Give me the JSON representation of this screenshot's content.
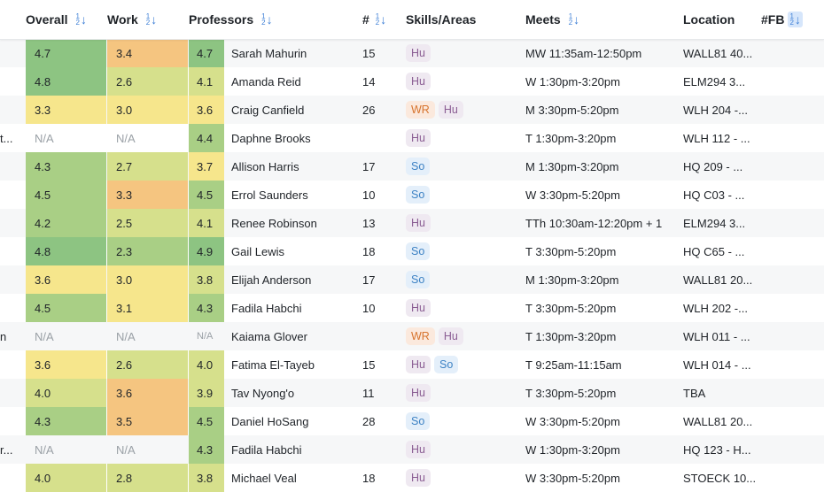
{
  "header": {
    "overall_label": "Overall",
    "work_label": "Work",
    "professors_label": "Professors",
    "num_label": "#",
    "skills_label": "Skills/Areas",
    "meets_label": "Meets",
    "location_label": "Location",
    "fb_label": "#FB",
    "sort_top": "1",
    "sort_bottom": "2",
    "sort_arrow": "↓"
  },
  "colors": {
    "rating_green_dark": "#8dc482",
    "rating_green": "#a9cf85",
    "rating_yellow_green": "#d6e08c",
    "rating_yellow": "#f6e68c",
    "rating_orange": "#f5c580"
  },
  "rows": [
    {
      "course": "",
      "overall": "4.7",
      "work": "3.4",
      "prof_rating": "4.7",
      "professor": "Sarah Mahurin",
      "num": "15",
      "skills": [
        "Hu"
      ],
      "meets": "MW 11:35am-12:50pm",
      "location": "WALL81 40..."
    },
    {
      "course": "",
      "overall": "4.8",
      "work": "2.6",
      "prof_rating": "4.1",
      "professor": "Amanda Reid",
      "num": "14",
      "skills": [
        "Hu"
      ],
      "meets": "W 1:30pm-3:20pm",
      "location": "ELM294 3..."
    },
    {
      "course": "",
      "overall": "3.3",
      "work": "3.0",
      "prof_rating": "3.6",
      "professor": "Craig Canfield",
      "num": "26",
      "skills": [
        "WR",
        "Hu"
      ],
      "meets": "M 3:30pm-5:20pm",
      "location": "WLH 204 -..."
    },
    {
      "course": "t...",
      "overall": "N/A",
      "work": "N/A",
      "prof_rating": "4.4",
      "professor": "Daphne Brooks",
      "num": "",
      "skills": [
        "Hu"
      ],
      "meets": "T 1:30pm-3:20pm",
      "location": "WLH 112 - ..."
    },
    {
      "course": "",
      "overall": "4.3",
      "work": "2.7",
      "prof_rating": "3.7",
      "professor": "Allison Harris",
      "num": "17",
      "skills": [
        "So"
      ],
      "meets": "M 1:30pm-3:20pm",
      "location": "HQ 209 - ..."
    },
    {
      "course": "",
      "overall": "4.5",
      "work": "3.3",
      "prof_rating": "4.5",
      "professor": "Errol Saunders",
      "num": "10",
      "skills": [
        "So"
      ],
      "meets": "W 3:30pm-5:20pm",
      "location": "HQ C03 - ..."
    },
    {
      "course": "",
      "overall": "4.2",
      "work": "2.5",
      "prof_rating": "4.1",
      "professor": "Renee Robinson",
      "num": "13",
      "skills": [
        "Hu"
      ],
      "meets": "TTh 10:30am-12:20pm + 1",
      "location": "ELM294 3..."
    },
    {
      "course": "",
      "overall": "4.8",
      "work": "2.3",
      "prof_rating": "4.9",
      "professor": "Gail Lewis",
      "num": "18",
      "skills": [
        "So"
      ],
      "meets": "T 3:30pm-5:20pm",
      "location": "HQ C65 - ..."
    },
    {
      "course": "",
      "overall": "3.6",
      "work": "3.0",
      "prof_rating": "3.8",
      "professor": "Elijah Anderson",
      "num": "17",
      "skills": [
        "So"
      ],
      "meets": "M 1:30pm-3:20pm",
      "location": "WALL81 20..."
    },
    {
      "course": "",
      "overall": "4.5",
      "work": "3.1",
      "prof_rating": "4.3",
      "professor": "Fadila Habchi",
      "num": "10",
      "skills": [
        "Hu"
      ],
      "meets": "T 3:30pm-5:20pm",
      "location": "WLH 202 -..."
    },
    {
      "course": "n",
      "overall": "N/A",
      "work": "N/A",
      "prof_rating": "N/A",
      "professor": "Kaiama Glover",
      "num": "",
      "skills": [
        "WR",
        "Hu"
      ],
      "meets": "T 1:30pm-3:20pm",
      "location": "WLH 011 - ..."
    },
    {
      "course": "",
      "overall": "3.6",
      "work": "2.6",
      "prof_rating": "4.0",
      "professor": "Fatima El-Tayeb",
      "num": "15",
      "skills": [
        "Hu",
        "So"
      ],
      "meets": "T 9:25am-11:15am",
      "location": "WLH 014 - ..."
    },
    {
      "course": "",
      "overall": "4.0",
      "work": "3.6",
      "prof_rating": "3.9",
      "professor": "Tav Nyong'o",
      "num": "11",
      "skills": [
        "Hu"
      ],
      "meets": "T 3:30pm-5:20pm",
      "location": "TBA"
    },
    {
      "course": "",
      "overall": "4.3",
      "work": "3.5",
      "prof_rating": "4.5",
      "professor": "Daniel HoSang",
      "num": "28",
      "skills": [
        "So"
      ],
      "meets": "W 3:30pm-5:20pm",
      "location": "WALL81 20..."
    },
    {
      "course": "r...",
      "overall": "N/A",
      "work": "N/A",
      "prof_rating": "4.3",
      "professor": "Fadila Habchi",
      "num": "",
      "skills": [
        "Hu"
      ],
      "meets": "W 1:30pm-3:20pm",
      "location": "HQ 123 - H..."
    },
    {
      "course": "",
      "overall": "4.0",
      "work": "2.8",
      "prof_rating": "3.8",
      "professor": "Michael Veal",
      "num": "18",
      "skills": [
        "Hu"
      ],
      "meets": "W 3:30pm-5:20pm",
      "location": "STOECK 10..."
    }
  ]
}
